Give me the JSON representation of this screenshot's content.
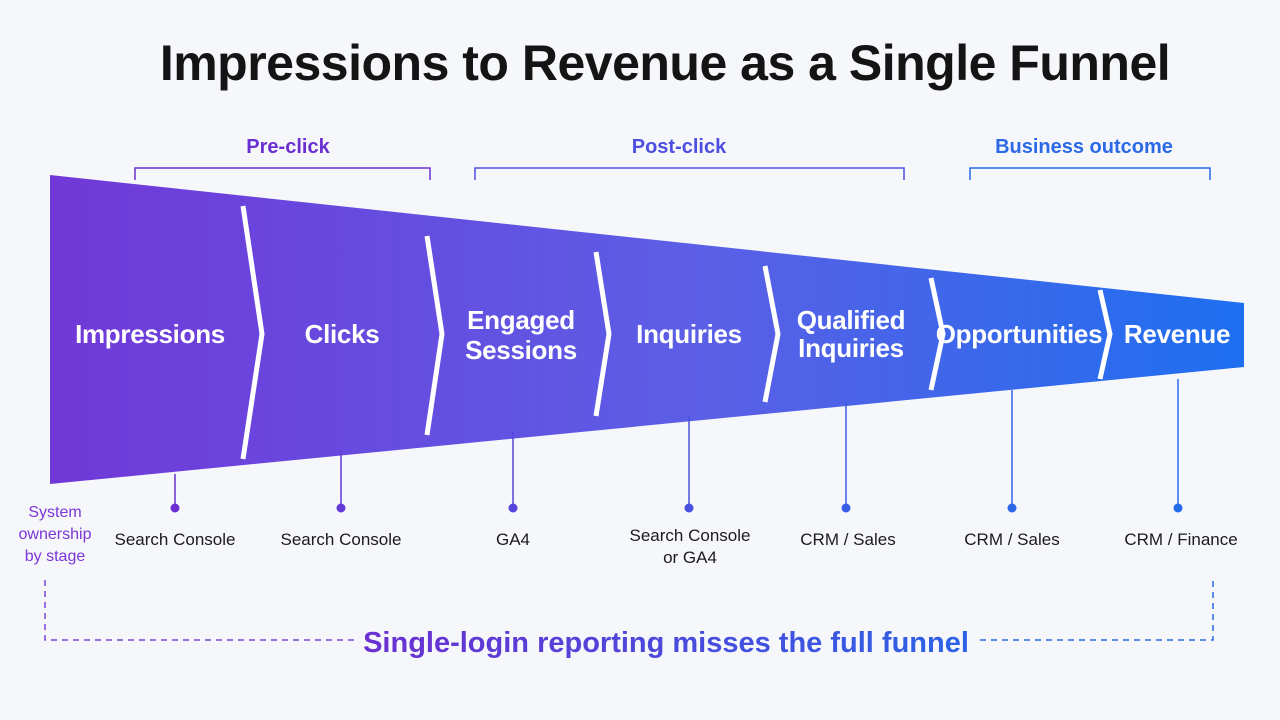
{
  "title": "Impressions to Revenue as a Single Funnel",
  "groups": [
    {
      "label": "Pre-click",
      "color": "#6b2fd1"
    },
    {
      "label": "Post-click",
      "color": "#4e4fe0"
    },
    {
      "label": "Business outcome",
      "color": "#2c69e6"
    }
  ],
  "stages": [
    {
      "label": "Impressions"
    },
    {
      "label": "Clicks"
    },
    {
      "label": "Engaged Sessions"
    },
    {
      "label": "Inquiries"
    },
    {
      "label": "Qualified Inquiries"
    },
    {
      "label": "Opportunities"
    },
    {
      "label": "Revenue"
    }
  ],
  "systems": [
    {
      "label": "Search Console"
    },
    {
      "label": "Search Console"
    },
    {
      "label": "GA4"
    },
    {
      "label": "Search Console or GA4"
    },
    {
      "label": "CRM / Sales"
    },
    {
      "label": "CRM / Sales"
    },
    {
      "label": "CRM / Finance"
    }
  ],
  "side_label": "System ownership by stage",
  "bottom_message": "Single-login reporting misses the full funnel",
  "colors": {
    "start": "#7138d8",
    "end": "#1e6ff0",
    "axis": "#3f4fe0"
  }
}
